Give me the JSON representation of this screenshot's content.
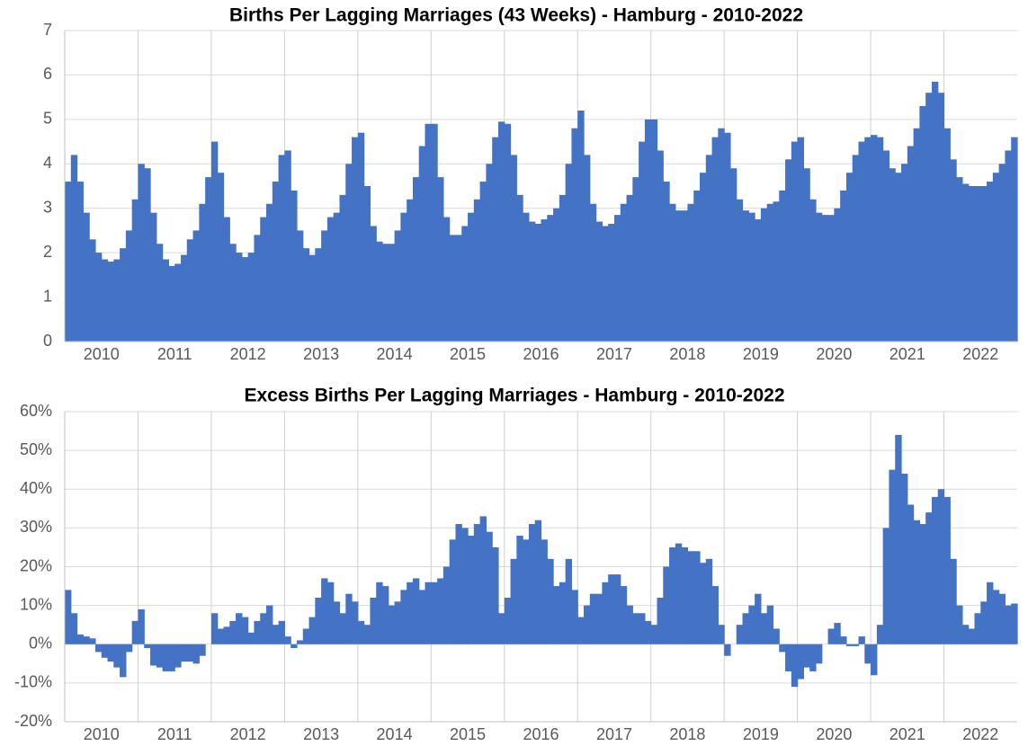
{
  "chart_data": [
    {
      "type": "bar",
      "title": "Births Per Lagging Marriages (43 Weeks) - Hamburg - 2010-2022",
      "color": "#4472c4",
      "grid": true,
      "ylim": [
        0,
        7
      ],
      "yticks": [
        0,
        1,
        2,
        3,
        4,
        5,
        6,
        7
      ],
      "categories": [
        null,
        null,
        null,
        null,
        null,
        null,
        "2010",
        null,
        null,
        null,
        null,
        null,
        null,
        null,
        null,
        null,
        null,
        null,
        "2011",
        null,
        null,
        null,
        null,
        null,
        null,
        null,
        null,
        null,
        null,
        null,
        "2012",
        null,
        null,
        null,
        null,
        null,
        null,
        null,
        null,
        null,
        null,
        null,
        "2013",
        null,
        null,
        null,
        null,
        null,
        null,
        null,
        null,
        null,
        null,
        null,
        "2014",
        null,
        null,
        null,
        null,
        null,
        null,
        null,
        null,
        null,
        null,
        null,
        "2015",
        null,
        null,
        null,
        null,
        null,
        null,
        null,
        null,
        null,
        null,
        null,
        "2016",
        null,
        null,
        null,
        null,
        null,
        null,
        null,
        null,
        null,
        null,
        null,
        "2017",
        null,
        null,
        null,
        null,
        null,
        null,
        null,
        null,
        null,
        null,
        null,
        "2018",
        null,
        null,
        null,
        null,
        null,
        null,
        null,
        null,
        null,
        null,
        null,
        "2019",
        null,
        null,
        null,
        null,
        null,
        null,
        null,
        null,
        null,
        null,
        null,
        "2020",
        null,
        null,
        null,
        null,
        null,
        null,
        null,
        null,
        null,
        null,
        null,
        "2021",
        null,
        null,
        null,
        null,
        null,
        null,
        null,
        null,
        null,
        null,
        null,
        "2022",
        null,
        null,
        null,
        null,
        null
      ],
      "values": [
        3.6,
        4.2,
        3.6,
        2.9,
        2.3,
        2.0,
        1.85,
        1.8,
        1.85,
        2.1,
        2.5,
        3.2,
        4.0,
        3.9,
        2.9,
        2.2,
        1.85,
        1.7,
        1.75,
        1.95,
        2.3,
        2.5,
        3.1,
        3.7,
        4.5,
        3.8,
        2.8,
        2.2,
        2.0,
        1.9,
        2.0,
        2.4,
        2.8,
        3.1,
        3.6,
        4.2,
        4.3,
        3.4,
        2.5,
        2.1,
        1.95,
        2.1,
        2.5,
        2.8,
        2.9,
        3.3,
        4.0,
        4.6,
        4.7,
        3.5,
        2.6,
        2.25,
        2.2,
        2.2,
        2.5,
        2.9,
        3.2,
        3.7,
        4.4,
        4.9,
        4.9,
        3.7,
        2.8,
        2.4,
        2.4,
        2.6,
        2.9,
        3.2,
        3.6,
        4.0,
        4.6,
        4.95,
        4.9,
        4.2,
        3.3,
        2.9,
        2.7,
        2.65,
        2.75,
        2.85,
        3.0,
        3.3,
        4.0,
        4.8,
        5.2,
        4.2,
        3.1,
        2.7,
        2.6,
        2.65,
        2.85,
        3.1,
        3.3,
        3.7,
        4.5,
        5.0,
        5.0,
        4.3,
        3.6,
        3.1,
        2.95,
        2.95,
        3.1,
        3.4,
        3.8,
        4.2,
        4.6,
        4.8,
        4.7,
        3.9,
        3.2,
        2.95,
        2.9,
        2.75,
        3.0,
        3.1,
        3.15,
        3.4,
        4.1,
        4.5,
        4.6,
        3.9,
        3.2,
        2.9,
        2.85,
        2.85,
        3.0,
        3.4,
        3.8,
        4.2,
        4.5,
        4.6,
        4.65,
        4.6,
        4.3,
        3.9,
        3.8,
        4.0,
        4.4,
        4.8,
        5.3,
        5.6,
        5.85,
        5.6,
        4.8,
        4.1,
        3.7,
        3.55,
        3.5,
        3.5,
        3.5,
        3.6,
        3.8,
        4.0,
        4.3,
        4.6
      ]
    },
    {
      "type": "bar",
      "title": "Excess Births Per Lagging Marriages - Hamburg - 2010-2022",
      "color": "#4472c4",
      "grid": true,
      "ylim": [
        -20,
        60
      ],
      "yticks": [
        {
          "value": -20,
          "label": "-20%"
        },
        {
          "value": -10,
          "label": "-10%"
        },
        {
          "value": 0,
          "label": "0%"
        },
        {
          "value": 10,
          "label": "10%"
        },
        {
          "value": 20,
          "label": "20%"
        },
        {
          "value": 30,
          "label": "30%"
        },
        {
          "value": 40,
          "label": "40%"
        },
        {
          "value": 50,
          "label": "50%"
        },
        {
          "value": 60,
          "label": "60%"
        }
      ],
      "categories": [
        null,
        null,
        null,
        null,
        null,
        null,
        "2010",
        null,
        null,
        null,
        null,
        null,
        null,
        null,
        null,
        null,
        null,
        null,
        "2011",
        null,
        null,
        null,
        null,
        null,
        null,
        null,
        null,
        null,
        null,
        null,
        "2012",
        null,
        null,
        null,
        null,
        null,
        null,
        null,
        null,
        null,
        null,
        null,
        "2013",
        null,
        null,
        null,
        null,
        null,
        null,
        null,
        null,
        null,
        null,
        null,
        "2014",
        null,
        null,
        null,
        null,
        null,
        null,
        null,
        null,
        null,
        null,
        null,
        "2015",
        null,
        null,
        null,
        null,
        null,
        null,
        null,
        null,
        null,
        null,
        null,
        "2016",
        null,
        null,
        null,
        null,
        null,
        null,
        null,
        null,
        null,
        null,
        null,
        "2017",
        null,
        null,
        null,
        null,
        null,
        null,
        null,
        null,
        null,
        null,
        null,
        "2018",
        null,
        null,
        null,
        null,
        null,
        null,
        null,
        null,
        null,
        null,
        null,
        "2019",
        null,
        null,
        null,
        null,
        null,
        null,
        null,
        null,
        null,
        null,
        null,
        "2020",
        null,
        null,
        null,
        null,
        null,
        null,
        null,
        null,
        null,
        null,
        null,
        "2021",
        null,
        null,
        null,
        null,
        null,
        null,
        null,
        null,
        null,
        null,
        null,
        "2022",
        null,
        null,
        null,
        null,
        null
      ],
      "values": [
        14,
        8,
        2.5,
        2,
        1.5,
        -2,
        -3.5,
        -4.5,
        -6,
        -8.5,
        -2,
        6,
        9,
        -1,
        -5.5,
        -6,
        -7,
        -7,
        -6,
        -4.5,
        -4.5,
        -5,
        -3,
        0,
        8,
        4,
        4.5,
        6,
        8,
        7,
        3,
        6,
        8,
        10,
        5,
        6,
        2,
        -1,
        1,
        4,
        7,
        12,
        17,
        16,
        11,
        8,
        13,
        11,
        6,
        5,
        12,
        16,
        15,
        10,
        11,
        14,
        16,
        17,
        14,
        16,
        16,
        17,
        20,
        27,
        31,
        30,
        28,
        31,
        33,
        29,
        25,
        8,
        12,
        22,
        28,
        27,
        31,
        32,
        27,
        22,
        15,
        16,
        22,
        14,
        7,
        10,
        13,
        13,
        16,
        18,
        18,
        15,
        10,
        8,
        8,
        6,
        5,
        12,
        20,
        25,
        26,
        25,
        24,
        24,
        21,
        22,
        15,
        5,
        -3,
        0,
        5,
        8,
        10,
        13,
        8,
        10,
        4,
        -2,
        -7,
        -11,
        -9,
        -6,
        -7,
        -5,
        0,
        4,
        5.5,
        2,
        -0.5,
        -0.5,
        2,
        -5,
        -8,
        5,
        30,
        45,
        54,
        44,
        36,
        32,
        31,
        34,
        38,
        40,
        38,
        22,
        10,
        5,
        4,
        8,
        11,
        16,
        14,
        13,
        10,
        10.5
      ]
    }
  ]
}
